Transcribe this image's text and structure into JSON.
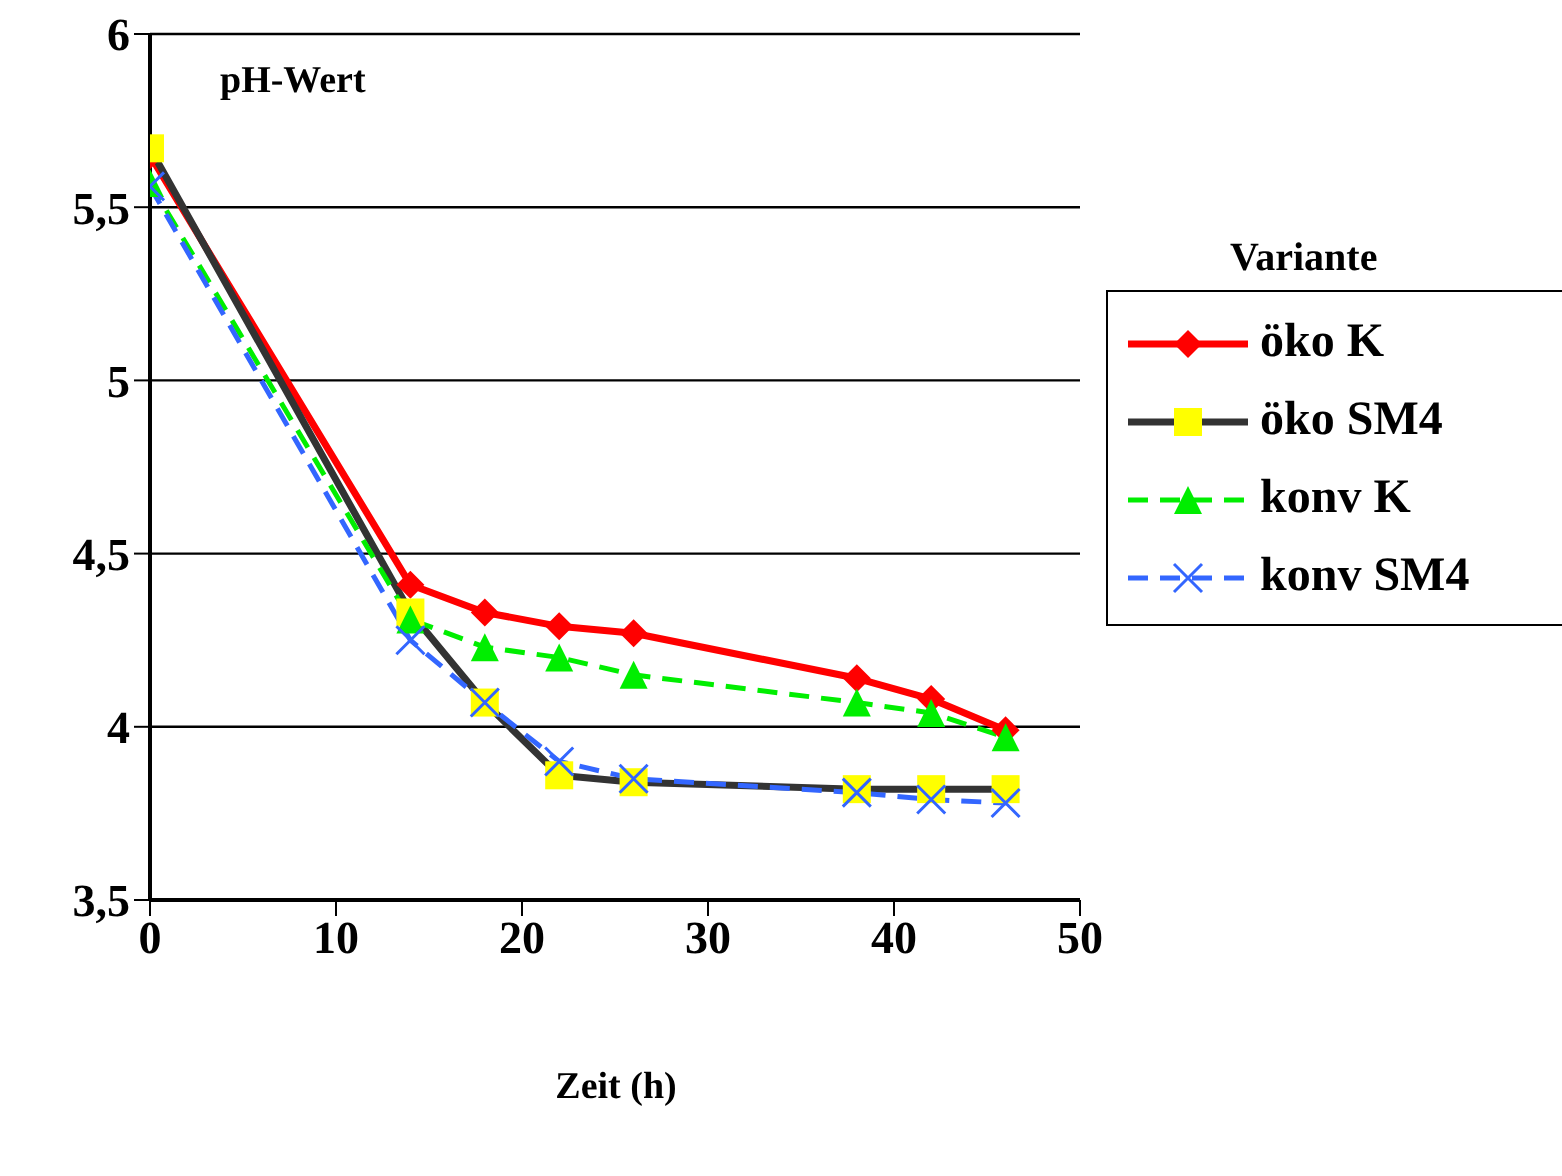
{
  "chart_data": {
    "type": "line",
    "title": "pH-Wert",
    "xlabel": "Zeit (h)",
    "legend_title": "Variante",
    "x": [
      0,
      14,
      18,
      22,
      26,
      38,
      42,
      46
    ],
    "series": [
      {
        "name": "öko K",
        "color": "#ff0000",
        "marker": "diamond",
        "line_style": "solid",
        "values": [
          5.65,
          4.41,
          4.33,
          4.29,
          4.27,
          4.14,
          4.08,
          3.99
        ]
      },
      {
        "name": "öko SM4",
        "color": "#333333",
        "marker": "square",
        "line_style": "solid",
        "values": [
          5.67,
          4.33,
          4.07,
          3.86,
          3.84,
          3.82,
          3.82,
          3.82
        ]
      },
      {
        "name": "konv K",
        "color": "#00ee00",
        "marker": "triangle",
        "line_style": "dashed",
        "values": [
          5.57,
          4.31,
          4.23,
          4.2,
          4.15,
          4.07,
          4.04,
          3.97
        ]
      },
      {
        "name": "konv SM4",
        "color": "#3366ff",
        "marker": "cross",
        "line_style": "dashed",
        "values": [
          5.56,
          4.25,
          4.07,
          3.9,
          3.85,
          3.81,
          3.79,
          3.78
        ]
      }
    ],
    "xlim": [
      0,
      50
    ],
    "xticks": [
      0,
      10,
      20,
      30,
      40,
      50
    ],
    "ylim": [
      3.5,
      6
    ],
    "yticks": [
      {
        "value": 3.5,
        "label": "3,5"
      },
      4,
      {
        "value": 4.5,
        "label": "4,5"
      },
      5,
      {
        "value": 5.5,
        "label": "5,5"
      },
      6
    ],
    "grid": "y",
    "legend": "right"
  }
}
